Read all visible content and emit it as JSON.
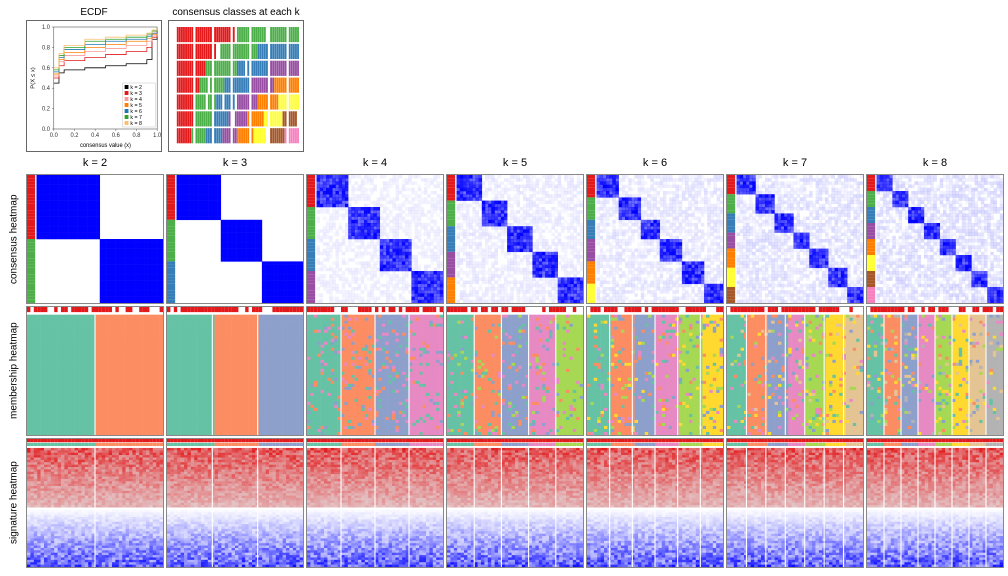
{
  "titles": {
    "ecdf": "ECDF",
    "consensus_classes": "consensus classes at each k"
  },
  "row_labels": [
    "consensus heatmap",
    "membership heatmap",
    "signature heatmap"
  ],
  "k_values": [
    2,
    3,
    4,
    5,
    6,
    7,
    8
  ],
  "col_labels": [
    "k = 2",
    "k = 3",
    "k = 4",
    "k = 5",
    "k = 6",
    "k = 7",
    "k = 8"
  ],
  "ecdf": {
    "xlabel": "consensus value (x)",
    "ylabel": "P(X ≤ x)",
    "xlim": [
      0.0,
      1.0
    ],
    "ylim": [
      0.0,
      1.0
    ],
    "xticks": [
      0.0,
      0.2,
      0.4,
      0.6,
      0.8,
      1.0
    ],
    "yticks": [
      0.0,
      0.2,
      0.4,
      0.6,
      0.8,
      1.0
    ],
    "label_fontsize": 6,
    "tick_fontsize": 5,
    "curves": [
      {
        "k": 2,
        "color": "#000000",
        "points": [
          [
            0,
            0.45
          ],
          [
            0.05,
            0.55
          ],
          [
            0.1,
            0.58
          ],
          [
            0.3,
            0.6
          ],
          [
            0.5,
            0.62
          ],
          [
            0.7,
            0.64
          ],
          [
            0.9,
            0.68
          ],
          [
            0.95,
            0.88
          ],
          [
            1,
            1
          ]
        ]
      },
      {
        "k": 3,
        "color": "#e31a1c",
        "points": [
          [
            0,
            0.5
          ],
          [
            0.05,
            0.62
          ],
          [
            0.1,
            0.67
          ],
          [
            0.3,
            0.7
          ],
          [
            0.5,
            0.73
          ],
          [
            0.7,
            0.76
          ],
          [
            0.9,
            0.8
          ],
          [
            0.95,
            0.9
          ],
          [
            1,
            1
          ]
        ]
      },
      {
        "k": 4,
        "color": "#fb9a99",
        "points": [
          [
            0,
            0.52
          ],
          [
            0.05,
            0.66
          ],
          [
            0.1,
            0.72
          ],
          [
            0.3,
            0.76
          ],
          [
            0.5,
            0.79
          ],
          [
            0.7,
            0.82
          ],
          [
            0.9,
            0.86
          ],
          [
            0.95,
            0.92
          ],
          [
            1,
            1
          ]
        ]
      },
      {
        "k": 5,
        "color": "#ff7f00",
        "points": [
          [
            0,
            0.54
          ],
          [
            0.05,
            0.68
          ],
          [
            0.1,
            0.75
          ],
          [
            0.3,
            0.8
          ],
          [
            0.5,
            0.83
          ],
          [
            0.7,
            0.86
          ],
          [
            0.9,
            0.89
          ],
          [
            0.95,
            0.93
          ],
          [
            1,
            1
          ]
        ]
      },
      {
        "k": 6,
        "color": "#1f78b4",
        "points": [
          [
            0,
            0.56
          ],
          [
            0.05,
            0.7
          ],
          [
            0.1,
            0.78
          ],
          [
            0.3,
            0.83
          ],
          [
            0.5,
            0.86
          ],
          [
            0.7,
            0.88
          ],
          [
            0.9,
            0.91
          ],
          [
            0.95,
            0.94
          ],
          [
            1,
            1
          ]
        ]
      },
      {
        "k": 7,
        "color": "#33a02c",
        "points": [
          [
            0,
            0.58
          ],
          [
            0.05,
            0.72
          ],
          [
            0.1,
            0.8
          ],
          [
            0.3,
            0.86
          ],
          [
            0.5,
            0.88
          ],
          [
            0.7,
            0.9
          ],
          [
            0.9,
            0.93
          ],
          [
            0.95,
            0.96
          ],
          [
            1,
            1
          ]
        ]
      },
      {
        "k": 8,
        "color": "#fdbf6f",
        "points": [
          [
            0,
            0.6
          ],
          [
            0.05,
            0.74
          ],
          [
            0.1,
            0.82
          ],
          [
            0.3,
            0.88
          ],
          [
            0.5,
            0.9
          ],
          [
            0.7,
            0.92
          ],
          [
            0.9,
            0.94
          ],
          [
            0.95,
            0.97
          ],
          [
            1,
            1
          ]
        ]
      }
    ],
    "legend_labels": [
      "k = 2",
      "k = 3",
      "k = 4",
      "k = 5",
      "k = 6",
      "k = 7",
      "k = 8"
    ],
    "legend_colors": [
      "#000000",
      "#e31a1c",
      "#fb9a99",
      "#ff7f00",
      "#1f78b4",
      "#33a02c",
      "#fdbf6f"
    ]
  },
  "cluster_colors": [
    "#e31a1c",
    "#4daf4a",
    "#377eb8",
    "#984ea3",
    "#ff7f00",
    "#ffff33",
    "#a65628",
    "#f781bf"
  ],
  "membership_colors": [
    "#66c2a5",
    "#fc8d62",
    "#8da0cb",
    "#e78ac3",
    "#a6d854",
    "#ffd92f",
    "#e5c494",
    "#b3b3b3"
  ],
  "signature_colors": {
    "high": "#e31a1c",
    "mid": "#ffffff",
    "low": "#0000ff"
  },
  "consensus_colors": {
    "on": "#0000ff",
    "off": "#ffffff"
  },
  "consensus_classes": {
    "n_samples": 60,
    "rows": 7,
    "background": "#ffffff"
  },
  "heatmap_grid": {
    "n_samples": 60,
    "bar_color": "#e31a1c",
    "bar_bg": "#ffffff"
  }
}
